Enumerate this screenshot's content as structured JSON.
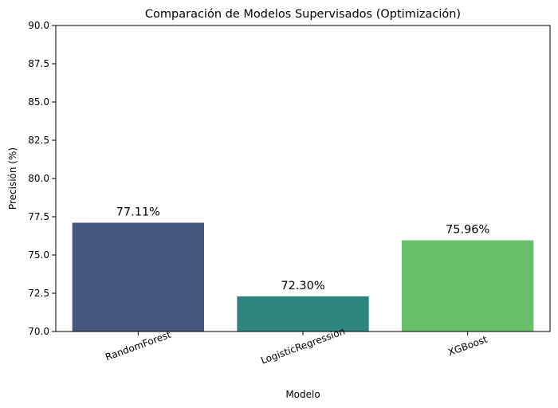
{
  "chart_data": {
    "type": "bar",
    "title": "Comparación de Modelos Supervisados (Optimización)",
    "xlabel": "Modelo",
    "ylabel": "Precisión (%)",
    "ylim": [
      70,
      90
    ],
    "yticks": [
      70.0,
      72.5,
      75.0,
      77.5,
      80.0,
      82.5,
      85.0,
      87.5,
      90.0
    ],
    "ytick_labels": [
      "70.0",
      "72.5",
      "75.0",
      "77.5",
      "80.0",
      "82.5",
      "85.0",
      "87.5",
      "90.0"
    ],
    "categories": [
      "RandomForest",
      "LogisticRegression",
      "XGBoost"
    ],
    "values": [
      77.11,
      72.3,
      75.96
    ],
    "data_labels": [
      "77.11%",
      "72.30%",
      "75.96%"
    ],
    "colors": [
      "#46577f",
      "#2e857e",
      "#6abf6a"
    ],
    "grid": false,
    "legend": "none"
  }
}
